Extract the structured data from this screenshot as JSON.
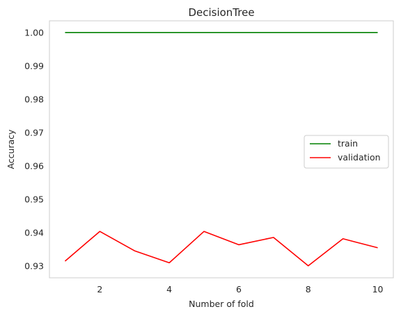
{
  "chart_data": {
    "type": "line",
    "title": "DecisionTree",
    "xlabel": "Number of fold",
    "ylabel": "Accuracy",
    "x": [
      1,
      2,
      3,
      4,
      5,
      6,
      7,
      8,
      9,
      10
    ],
    "xlim": [
      0.55,
      10.45
    ],
    "ylim": [
      0.9265,
      1.0035
    ],
    "xticks": [
      2,
      4,
      6,
      8,
      10
    ],
    "xtick_labels": [
      "2",
      "4",
      "6",
      "8",
      "10"
    ],
    "yticks": [
      0.93,
      0.94,
      0.95,
      0.96,
      0.97,
      0.98,
      0.99,
      1.0
    ],
    "ytick_labels": [
      "0.93",
      "0.94",
      "0.95",
      "0.96",
      "0.97",
      "0.98",
      "0.99",
      "1.00"
    ],
    "grid": false,
    "legend_position": "center-right",
    "series": [
      {
        "name": "train",
        "color": "#008000",
        "values": [
          1.0,
          1.0,
          1.0,
          1.0,
          1.0,
          1.0,
          1.0,
          1.0,
          1.0,
          1.0
        ]
      },
      {
        "name": "validation",
        "color": "#ff0000",
        "values": [
          0.9315,
          0.9404,
          0.9346,
          0.931,
          0.9404,
          0.9364,
          0.9386,
          0.9301,
          0.9382,
          0.9355
        ]
      }
    ]
  }
}
